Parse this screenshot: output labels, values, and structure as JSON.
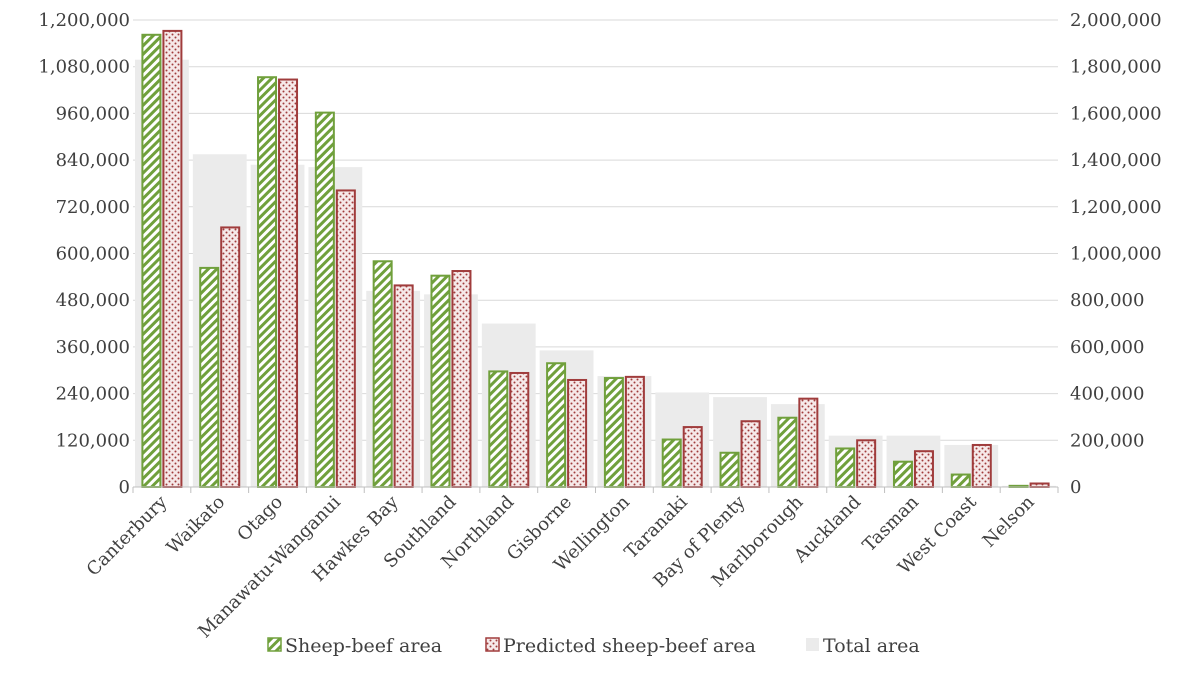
{
  "chart_data": {
    "type": "bar",
    "categories": [
      "Canterbury",
      "Waikato",
      "Otago",
      "Manawatu-Wanganui",
      "Hawkes Bay",
      "Southland",
      "Northland",
      "Gisborne",
      "Wellington",
      "Taranaki",
      "Bay of Plenty",
      "Marlborough",
      "Auckland",
      "Tasman",
      "West Coast",
      "Nelson"
    ],
    "series": [
      {
        "name": "Sheep-beef area",
        "axis": "left",
        "pattern": "diagonal-hatch",
        "color": "#70a03c",
        "values": [
          1162000,
          563000,
          1053000,
          962000,
          580000,
          543000,
          297000,
          318000,
          280000,
          122000,
          88000,
          178000,
          99000,
          65000,
          32000,
          3000
        ]
      },
      {
        "name": "Predicted sheep-beef area",
        "axis": "left",
        "pattern": "dots",
        "color": "#a03c3c",
        "values": [
          1172000,
          667000,
          1047000,
          762000,
          518000,
          555000,
          293000,
          275000,
          283000,
          154000,
          169000,
          227000,
          120000,
          92000,
          108000,
          9000
        ]
      },
      {
        "name": "Total area",
        "axis": "right",
        "pattern": "solid",
        "color": "#ebebeb",
        "values": [
          1830000,
          1425000,
          1380000,
          1370000,
          840000,
          825000,
          700000,
          585000,
          475000,
          405000,
          385000,
          355000,
          220000,
          220000,
          180000,
          5000
        ]
      }
    ],
    "left_axis": {
      "ylim": [
        0,
        1200000
      ],
      "ticks": [
        "0",
        "120,000",
        "240,000",
        "360,000",
        "480,000",
        "600,000",
        "720,000",
        "840,000",
        "960,000",
        "1,080,000",
        "1,200,000"
      ]
    },
    "right_axis": {
      "ylim": [
        0,
        2000000
      ],
      "ticks": [
        "0",
        "200,000",
        "400,000",
        "600,000",
        "800,000",
        "1,000,000",
        "1,200,000",
        "1,400,000",
        "1,600,000",
        "1,800,000",
        "2,000,000"
      ]
    },
    "grid": true,
    "legend": "bottom",
    "gridline_color": "#d9d9d9"
  }
}
